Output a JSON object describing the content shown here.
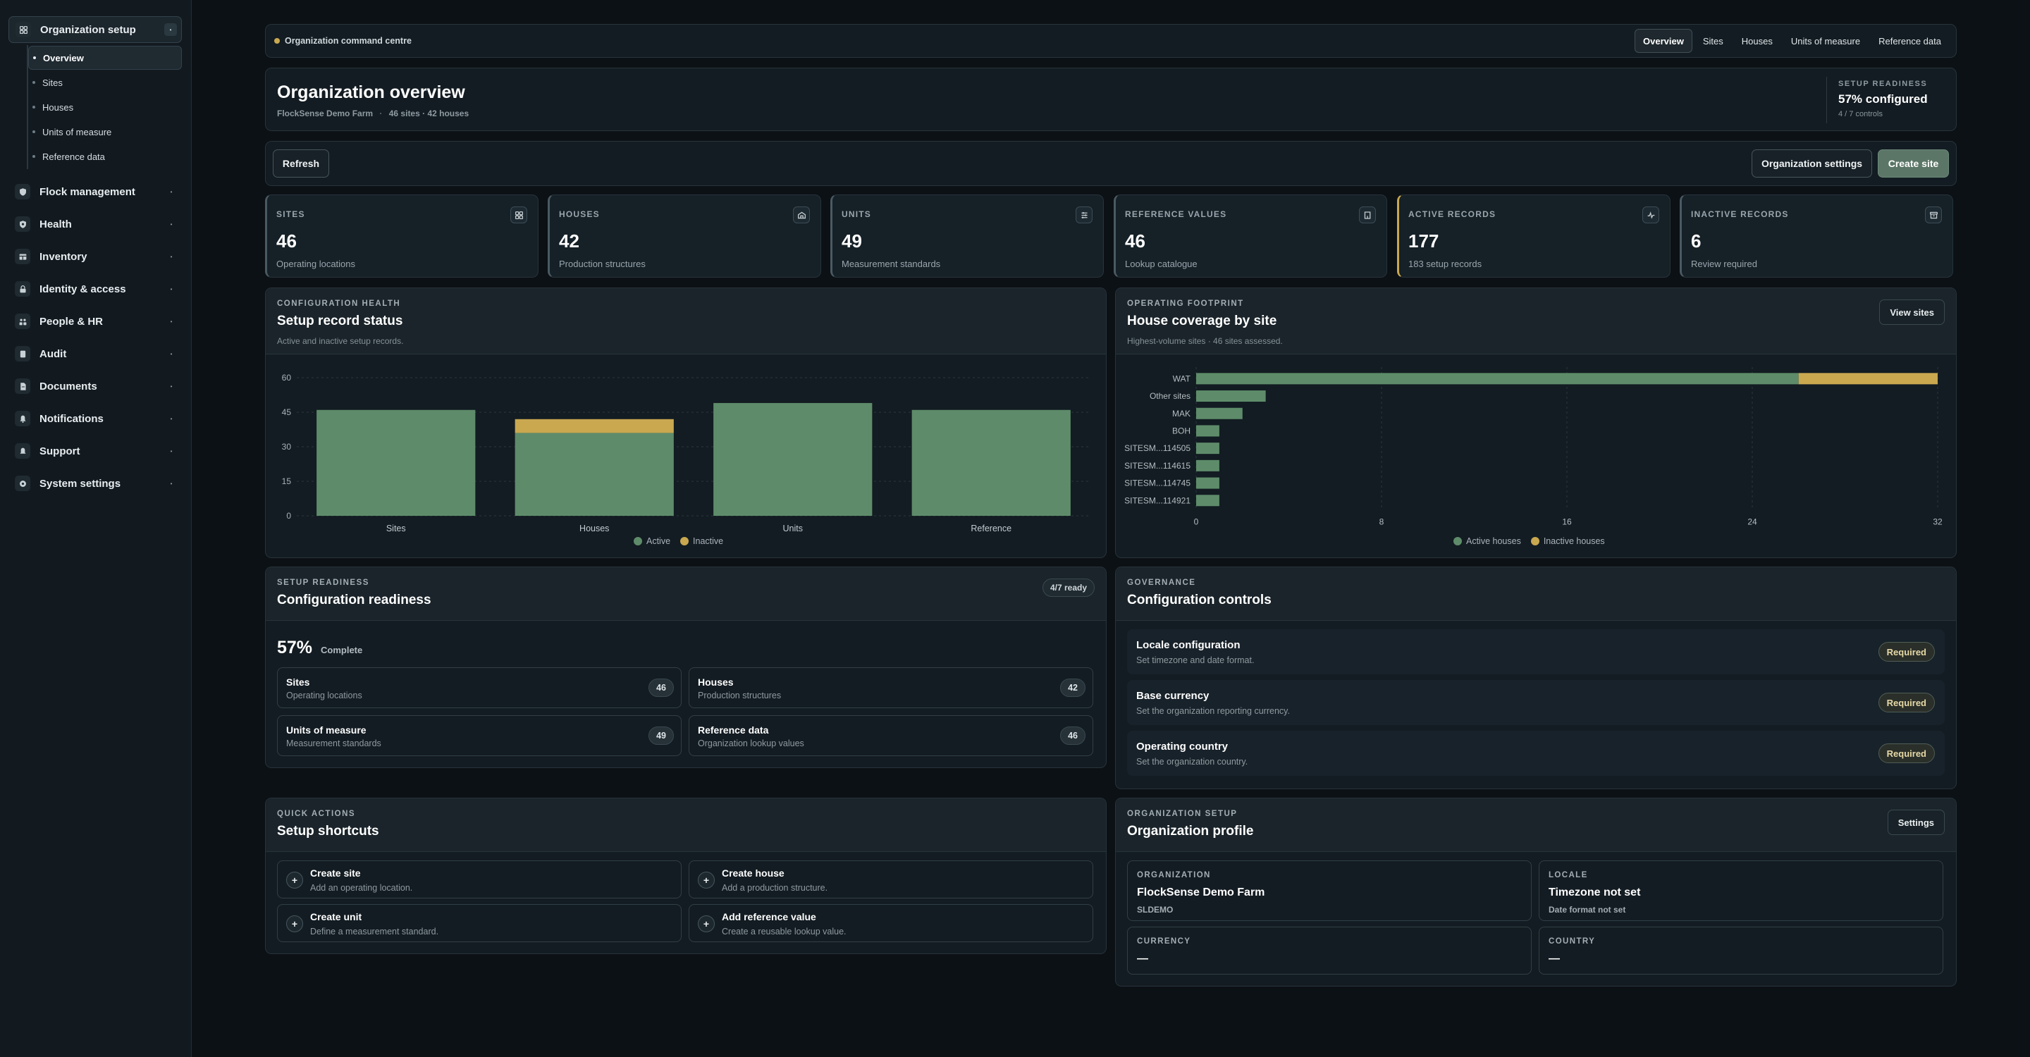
{
  "sidebar": {
    "groups": [
      {
        "label": "Organization setup",
        "icon": "grid-icon"
      },
      {
        "label": "Flock management",
        "icon": "shield-icon"
      },
      {
        "label": "Health",
        "icon": "heart-shield-icon"
      },
      {
        "label": "Inventory",
        "icon": "warehouse-icon"
      },
      {
        "label": "Identity & access",
        "icon": "lock-icon"
      },
      {
        "label": "People & HR",
        "icon": "people-icon"
      },
      {
        "label": "Audit",
        "icon": "clipboard-icon"
      },
      {
        "label": "Documents",
        "icon": "document-icon"
      },
      {
        "label": "Notifications",
        "icon": "bell-icon"
      },
      {
        "label": "Support",
        "icon": "lifebuoy-icon"
      },
      {
        "label": "System settings",
        "icon": "gear-icon"
      }
    ],
    "sub_items": [
      "Overview",
      "Sites",
      "Houses",
      "Units of measure",
      "Reference data"
    ]
  },
  "topbar": {
    "title": "Organization command centre",
    "tabs": [
      "Overview",
      "Sites",
      "Houses",
      "Units of measure",
      "Reference data"
    ]
  },
  "header": {
    "title": "Organization overview",
    "org": "FlockSense Demo Farm",
    "counts": "46 sites · 42 houses",
    "readiness_label": "SETUP READINESS",
    "readiness_value": "57% configured",
    "readiness_sub": "4 / 7 controls"
  },
  "actions": {
    "refresh": "Refresh",
    "settings": "Organization settings",
    "create": "Create site"
  },
  "stats": [
    {
      "label": "SITES",
      "value": "46",
      "sub": "Operating locations",
      "icon": "grid-icon"
    },
    {
      "label": "HOUSES",
      "value": "42",
      "sub": "Production structures",
      "icon": "house-icon"
    },
    {
      "label": "UNITS",
      "value": "49",
      "sub": "Measurement standards",
      "icon": "sliders-icon"
    },
    {
      "label": "REFERENCE VALUES",
      "value": "46",
      "sub": "Lookup catalogue",
      "icon": "book-icon"
    },
    {
      "label": "ACTIVE RECORDS",
      "value": "177",
      "sub": "183 setup records",
      "icon": "activity-icon"
    },
    {
      "label": "INACTIVE RECORDS",
      "value": "6",
      "sub": "Review required",
      "icon": "archive-icon"
    }
  ],
  "config_health": {
    "eyebrow": "CONFIGURATION HEALTH",
    "title": "Setup record status",
    "sub": "Active and inactive setup records."
  },
  "footprint": {
    "eyebrow": "OPERATING FOOTPRINT",
    "title": "House coverage by site",
    "sub": "Highest-volume sites · 46 sites assessed.",
    "button": "View sites"
  },
  "readiness": {
    "eyebrow": "SETUP READINESS",
    "title": "Configuration readiness",
    "badge": "4/7 ready",
    "percent": "57%",
    "percent_label": "Complete",
    "items": [
      {
        "title": "Sites",
        "sub": "Operating locations",
        "count": "46"
      },
      {
        "title": "Houses",
        "sub": "Production structures",
        "count": "42"
      },
      {
        "title": "Units of measure",
        "sub": "Measurement standards",
        "count": "49"
      },
      {
        "title": "Reference data",
        "sub": "Organization lookup values",
        "count": "46"
      }
    ]
  },
  "governance": {
    "eyebrow": "GOVERNANCE",
    "title": "Configuration controls",
    "items": [
      {
        "title": "Locale configuration",
        "sub": "Set timezone and date format.",
        "badge": "Required"
      },
      {
        "title": "Base currency",
        "sub": "Set the organization reporting currency.",
        "badge": "Required"
      },
      {
        "title": "Operating country",
        "sub": "Set the organization country.",
        "badge": "Required"
      }
    ]
  },
  "shortcuts": {
    "eyebrow": "QUICK ACTIONS",
    "title": "Setup shortcuts",
    "items": [
      {
        "title": "Create site",
        "sub": "Add an operating location."
      },
      {
        "title": "Create house",
        "sub": "Add a production structure."
      },
      {
        "title": "Create unit",
        "sub": "Define a measurement standard."
      },
      {
        "title": "Add reference value",
        "sub": "Create a reusable lookup value."
      }
    ]
  },
  "profile": {
    "eyebrow": "ORGANIZATION SETUP",
    "title": "Organization profile",
    "button": "Settings",
    "org_label": "ORGANIZATION",
    "org_value": "FlockSense Demo Farm",
    "org_code": "SLDEMO",
    "locale_label": "LOCALE",
    "locale_value": "Timezone not set",
    "locale_sub": "Date format not set",
    "currency_label": "CURRENCY",
    "currency_value": "—",
    "country_label": "COUNTRY",
    "country_value": "—"
  },
  "colors": {
    "active": "#5e8c6a",
    "inactive": "#c9a850",
    "background": "#0c1115"
  },
  "chart_data": [
    {
      "type": "bar",
      "stacked": true,
      "categories": [
        "Sites",
        "Houses",
        "Units",
        "Reference"
      ],
      "series": [
        {
          "name": "Active",
          "values": [
            46,
            36,
            49,
            46
          ]
        },
        {
          "name": "Inactive",
          "values": [
            0,
            6,
            0,
            0
          ]
        }
      ],
      "ylim": [
        0,
        60
      ],
      "yticks": [
        0,
        15,
        30,
        45,
        60
      ],
      "grid": true,
      "legend": "bottom"
    },
    {
      "type": "bar",
      "orientation": "horizontal",
      "stacked": true,
      "categories": [
        "WAT",
        "Other sites",
        "MAK",
        "BOH",
        "SITESM...114505",
        "SITESM...114615",
        "SITESM...114745",
        "SITESM...114921"
      ],
      "series": [
        {
          "name": "Active houses",
          "values": [
            26,
            3,
            2,
            1,
            1,
            1,
            1,
            1
          ]
        },
        {
          "name": "Inactive houses",
          "values": [
            6,
            0,
            0,
            0,
            0,
            0,
            0,
            0
          ]
        }
      ],
      "xlim": [
        0,
        32
      ],
      "xticks": [
        0,
        8,
        16,
        24,
        32
      ],
      "grid": true,
      "legend": "bottom"
    }
  ]
}
